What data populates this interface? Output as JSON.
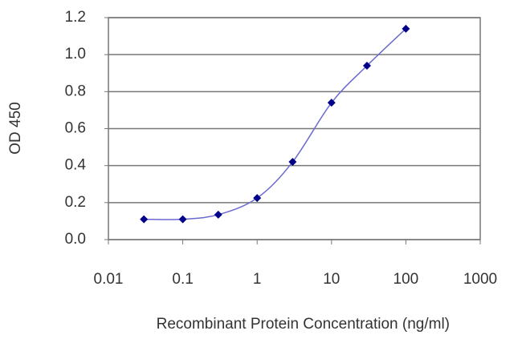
{
  "chart_data": {
    "type": "line",
    "x_label": "Recombinant Protein Concentration (ng/ml)",
    "y_label": "OD 450",
    "x": [
      0.03,
      0.1,
      0.3,
      1,
      3,
      10,
      30,
      100
    ],
    "series": [
      {
        "color": "#00008b",
        "line_color": "#6a6ad0",
        "values": [
          0.11,
          0.11,
          0.135,
          0.225,
          0.42,
          0.74,
          0.94,
          1.14
        ]
      }
    ],
    "xlim": [
      0.01,
      1000
    ],
    "xticks": [
      0.01,
      0.1,
      1,
      10,
      100,
      1000
    ],
    "x_log": true,
    "ylim": [
      0,
      1.2
    ],
    "yticks": [
      {
        "value": 0,
        "label": "0.0"
      },
      0.2,
      0.4,
      0.6,
      0.8,
      {
        "value": 1,
        "label": "1.0"
      },
      1.2
    ],
    "grid": true
  }
}
